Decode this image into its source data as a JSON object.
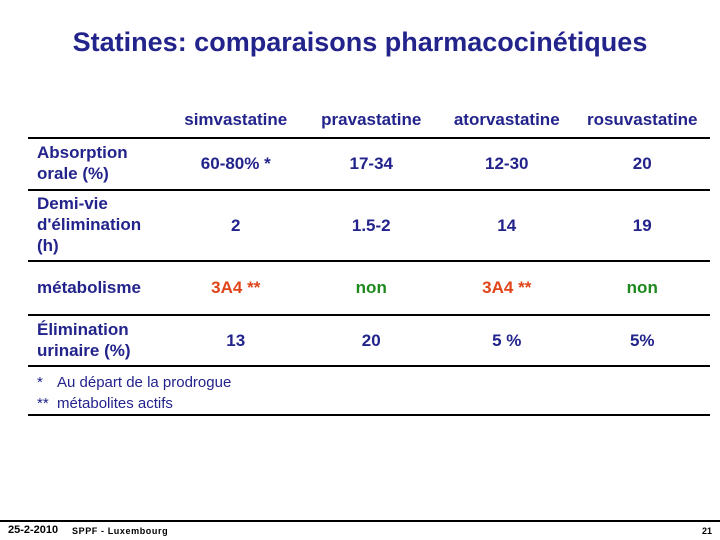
{
  "title": "Statines: comparaisons pharmacocinétiques",
  "table": {
    "columns": [
      "simvastatine",
      "pravastatine",
      "atorvastatine",
      "rosuvastatine"
    ],
    "rows": [
      {
        "label": "Absorption orale (%)",
        "cells": [
          {
            "text": "60-80% *"
          },
          {
            "text": "17-34"
          },
          {
            "text": "12-30"
          },
          {
            "text": "20"
          }
        ]
      },
      {
        "label": "Demi-vie d'élimination (h)",
        "cells": [
          {
            "text": "2"
          },
          {
            "text": "1.5-2"
          },
          {
            "text": "14"
          },
          {
            "text": "19"
          }
        ]
      },
      {
        "label": "métabolisme",
        "cells": [
          {
            "text": "3A4 **",
            "color": "#E04418"
          },
          {
            "text": "non",
            "color": "#1E8A1E"
          },
          {
            "text": "3A4 **",
            "color": "#E04418"
          },
          {
            "text": "non",
            "color": "#1E8A1E"
          }
        ]
      },
      {
        "label": "Élimination urinaire (%)",
        "cells": [
          {
            "text": "13"
          },
          {
            "text": "20"
          },
          {
            "text": "5 %"
          },
          {
            "text": "5%"
          }
        ]
      }
    ]
  },
  "footnotes": [
    {
      "marker": "*",
      "text": "Au départ de la prodrogue"
    },
    {
      "marker": "**",
      "text": "métabolites actifs"
    }
  ],
  "footer": {
    "date": "25-2-2010",
    "org": "SPPF - Luxembourg",
    "page": "21"
  },
  "colors": {
    "navy": "#23238C",
    "orange": "#E04418",
    "green": "#1E8A1E",
    "line": "#000000",
    "footer_text": "#000000"
  }
}
